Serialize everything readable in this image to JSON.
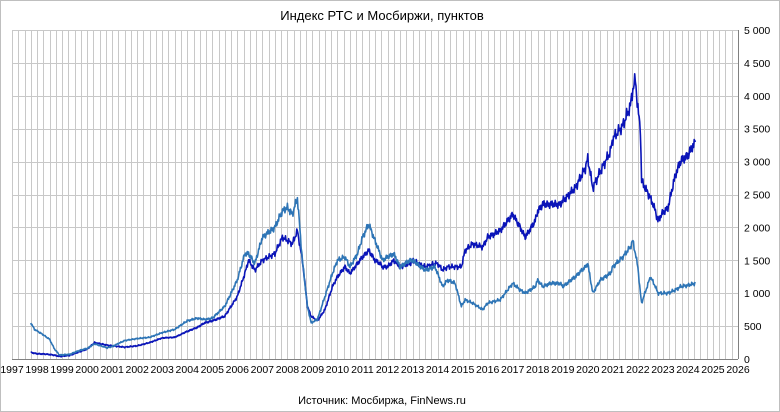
{
  "chart_data": {
    "type": "line",
    "title": "Индекс РТС и Мосбиржи, пунктов",
    "source": "Источник: Мосбиржа, FinNews.ru",
    "xlabel": "",
    "ylabel": "",
    "xlim": [
      1997,
      2026
    ],
    "ylim": [
      0,
      5000
    ],
    "y_ticks": [
      0,
      500,
      1000,
      1500,
      2000,
      2500,
      3000,
      3500,
      4000,
      4500,
      5000
    ],
    "y_tick_labels": [
      "0",
      "500",
      "1 000",
      "1 500",
      "2 000",
      "2 500",
      "3 000",
      "3 500",
      "4 000",
      "4 500",
      "5 000"
    ],
    "x_ticks": [
      1997,
      1998,
      1999,
      2000,
      2001,
      2002,
      2003,
      2004,
      2005,
      2006,
      2007,
      2008,
      2009,
      2010,
      2011,
      2012,
      2013,
      2014,
      2015,
      2016,
      2017,
      2018,
      2019,
      2020,
      2021,
      2022,
      2023,
      2024,
      2025,
      2026
    ],
    "y_axis_position": "right",
    "grid": true,
    "grid_minor_x": "quarterly",
    "legend": "none",
    "series": [
      {
        "color": "#0a14b8",
        "x": [
          1997.75,
          1998.0,
          1998.3,
          1998.6,
          1998.9,
          1999.3,
          1999.7,
          2000.0,
          2000.3,
          2000.8,
          2001.0,
          2001.5,
          2002.0,
          2002.5,
          2003.0,
          2003.5,
          2004.0,
          2004.4,
          2004.7,
          2005.0,
          2005.5,
          2006.0,
          2006.3,
          2006.45,
          2006.7,
          2007.0,
          2007.5,
          2007.8,
          2008.0,
          2008.2,
          2008.4,
          2008.6,
          2008.8,
          2008.95,
          2009.2,
          2009.5,
          2009.8,
          2010.0,
          2010.3,
          2010.5,
          2010.8,
          2011.0,
          2011.25,
          2011.5,
          2011.7,
          2011.8,
          2012.0,
          2012.25,
          2012.5,
          2012.9,
          2013.0,
          2013.5,
          2013.9,
          2014.0,
          2014.2,
          2014.4,
          2014.7,
          2014.95,
          2015.1,
          2015.4,
          2015.8,
          2016.0,
          2016.5,
          2016.9,
          2017.0,
          2017.3,
          2017.5,
          2017.9,
          2018.0,
          2018.2,
          2018.5,
          2018.9,
          2019.0,
          2019.5,
          2019.9,
          2020.0,
          2020.2,
          2020.5,
          2020.9,
          2021.0,
          2021.4,
          2021.7,
          2021.8,
          2021.9,
          2022.0,
          2022.1,
          2022.15,
          2022.5,
          2022.7,
          2022.8,
          2022.95,
          2023.2,
          2023.5,
          2023.7,
          2024.0,
          2024.3
        ],
        "values": [
          100,
          80,
          75,
          65,
          40,
          55,
          110,
          150,
          250,
          210,
          200,
          180,
          200,
          250,
          320,
          330,
          420,
          480,
          550,
          580,
          650,
          950,
          1300,
          1500,
          1350,
          1500,
          1600,
          1850,
          1800,
          1750,
          1950,
          1500,
          800,
          650,
          580,
          750,
          1100,
          1250,
          1400,
          1300,
          1450,
          1550,
          1650,
          1500,
          1450,
          1400,
          1400,
          1500,
          1400,
          1450,
          1500,
          1400,
          1450,
          1450,
          1350,
          1400,
          1400,
          1400,
          1650,
          1750,
          1700,
          1850,
          1950,
          2150,
          2200,
          2000,
          1850,
          2100,
          2250,
          2350,
          2350,
          2350,
          2400,
          2600,
          2900,
          3050,
          2600,
          2850,
          3150,
          3350,
          3550,
          3850,
          4100,
          4250,
          3800,
          3500,
          2700,
          2450,
          2250,
          2100,
          2200,
          2300,
          2800,
          3000,
          3100,
          3300
        ]
      },
      {
        "color": "#2e75b6",
        "x": [
          1997.75,
          1997.9,
          1998.2,
          1998.5,
          1998.7,
          1998.9,
          1999.3,
          1999.7,
          2000.0,
          2000.3,
          2000.8,
          2001.0,
          2001.5,
          2002.0,
          2002.5,
          2003.0,
          2003.5,
          2004.0,
          2004.4,
          2004.7,
          2005.0,
          2005.5,
          2006.0,
          2006.3,
          2006.45,
          2006.7,
          2007.0,
          2007.5,
          2007.8,
          2008.0,
          2008.2,
          2008.4,
          2008.6,
          2008.8,
          2008.95,
          2009.2,
          2009.5,
          2009.8,
          2010.0,
          2010.3,
          2010.5,
          2010.8,
          2011.0,
          2011.25,
          2011.5,
          2011.7,
          2011.8,
          2012.0,
          2012.25,
          2012.5,
          2012.9,
          2013.0,
          2013.5,
          2013.9,
          2014.0,
          2014.2,
          2014.4,
          2014.7,
          2014.95,
          2015.1,
          2015.4,
          2015.8,
          2016.0,
          2016.5,
          2016.9,
          2017.0,
          2017.3,
          2017.5,
          2017.9,
          2018.0,
          2018.2,
          2018.5,
          2018.9,
          2019.0,
          2019.5,
          2019.9,
          2020.0,
          2020.2,
          2020.5,
          2020.9,
          2021.0,
          2021.4,
          2021.7,
          2021.8,
          2021.9,
          2022.0,
          2022.1,
          2022.15,
          2022.5,
          2022.7,
          2022.8,
          2022.95,
          2023.2,
          2023.5,
          2023.7,
          2024.0,
          2024.3
        ],
        "values": [
          550,
          450,
          380,
          300,
          150,
          60,
          70,
          130,
          160,
          230,
          170,
          190,
          280,
          310,
          330,
          400,
          450,
          580,
          620,
          600,
          620,
          800,
          1200,
          1600,
          1600,
          1450,
          1850,
          2000,
          2250,
          2300,
          2200,
          2450,
          1500,
          800,
          550,
          600,
          950,
          1300,
          1500,
          1550,
          1400,
          1600,
          1850,
          2050,
          1800,
          1600,
          1500,
          1550,
          1600,
          1400,
          1500,
          1500,
          1350,
          1400,
          1300,
          1100,
          1200,
          1150,
          800,
          900,
          850,
          750,
          850,
          900,
          1100,
          1150,
          1050,
          1000,
          1100,
          1200,
          1100,
          1150,
          1150,
          1100,
          1250,
          1400,
          1450,
          1000,
          1200,
          1300,
          1400,
          1550,
          1700,
          1800,
          1600,
          1400,
          1000,
          850,
          1250,
          1100,
          1000,
          1000,
          1000,
          1050,
          1100,
          1120,
          1150
        ]
      }
    ]
  }
}
